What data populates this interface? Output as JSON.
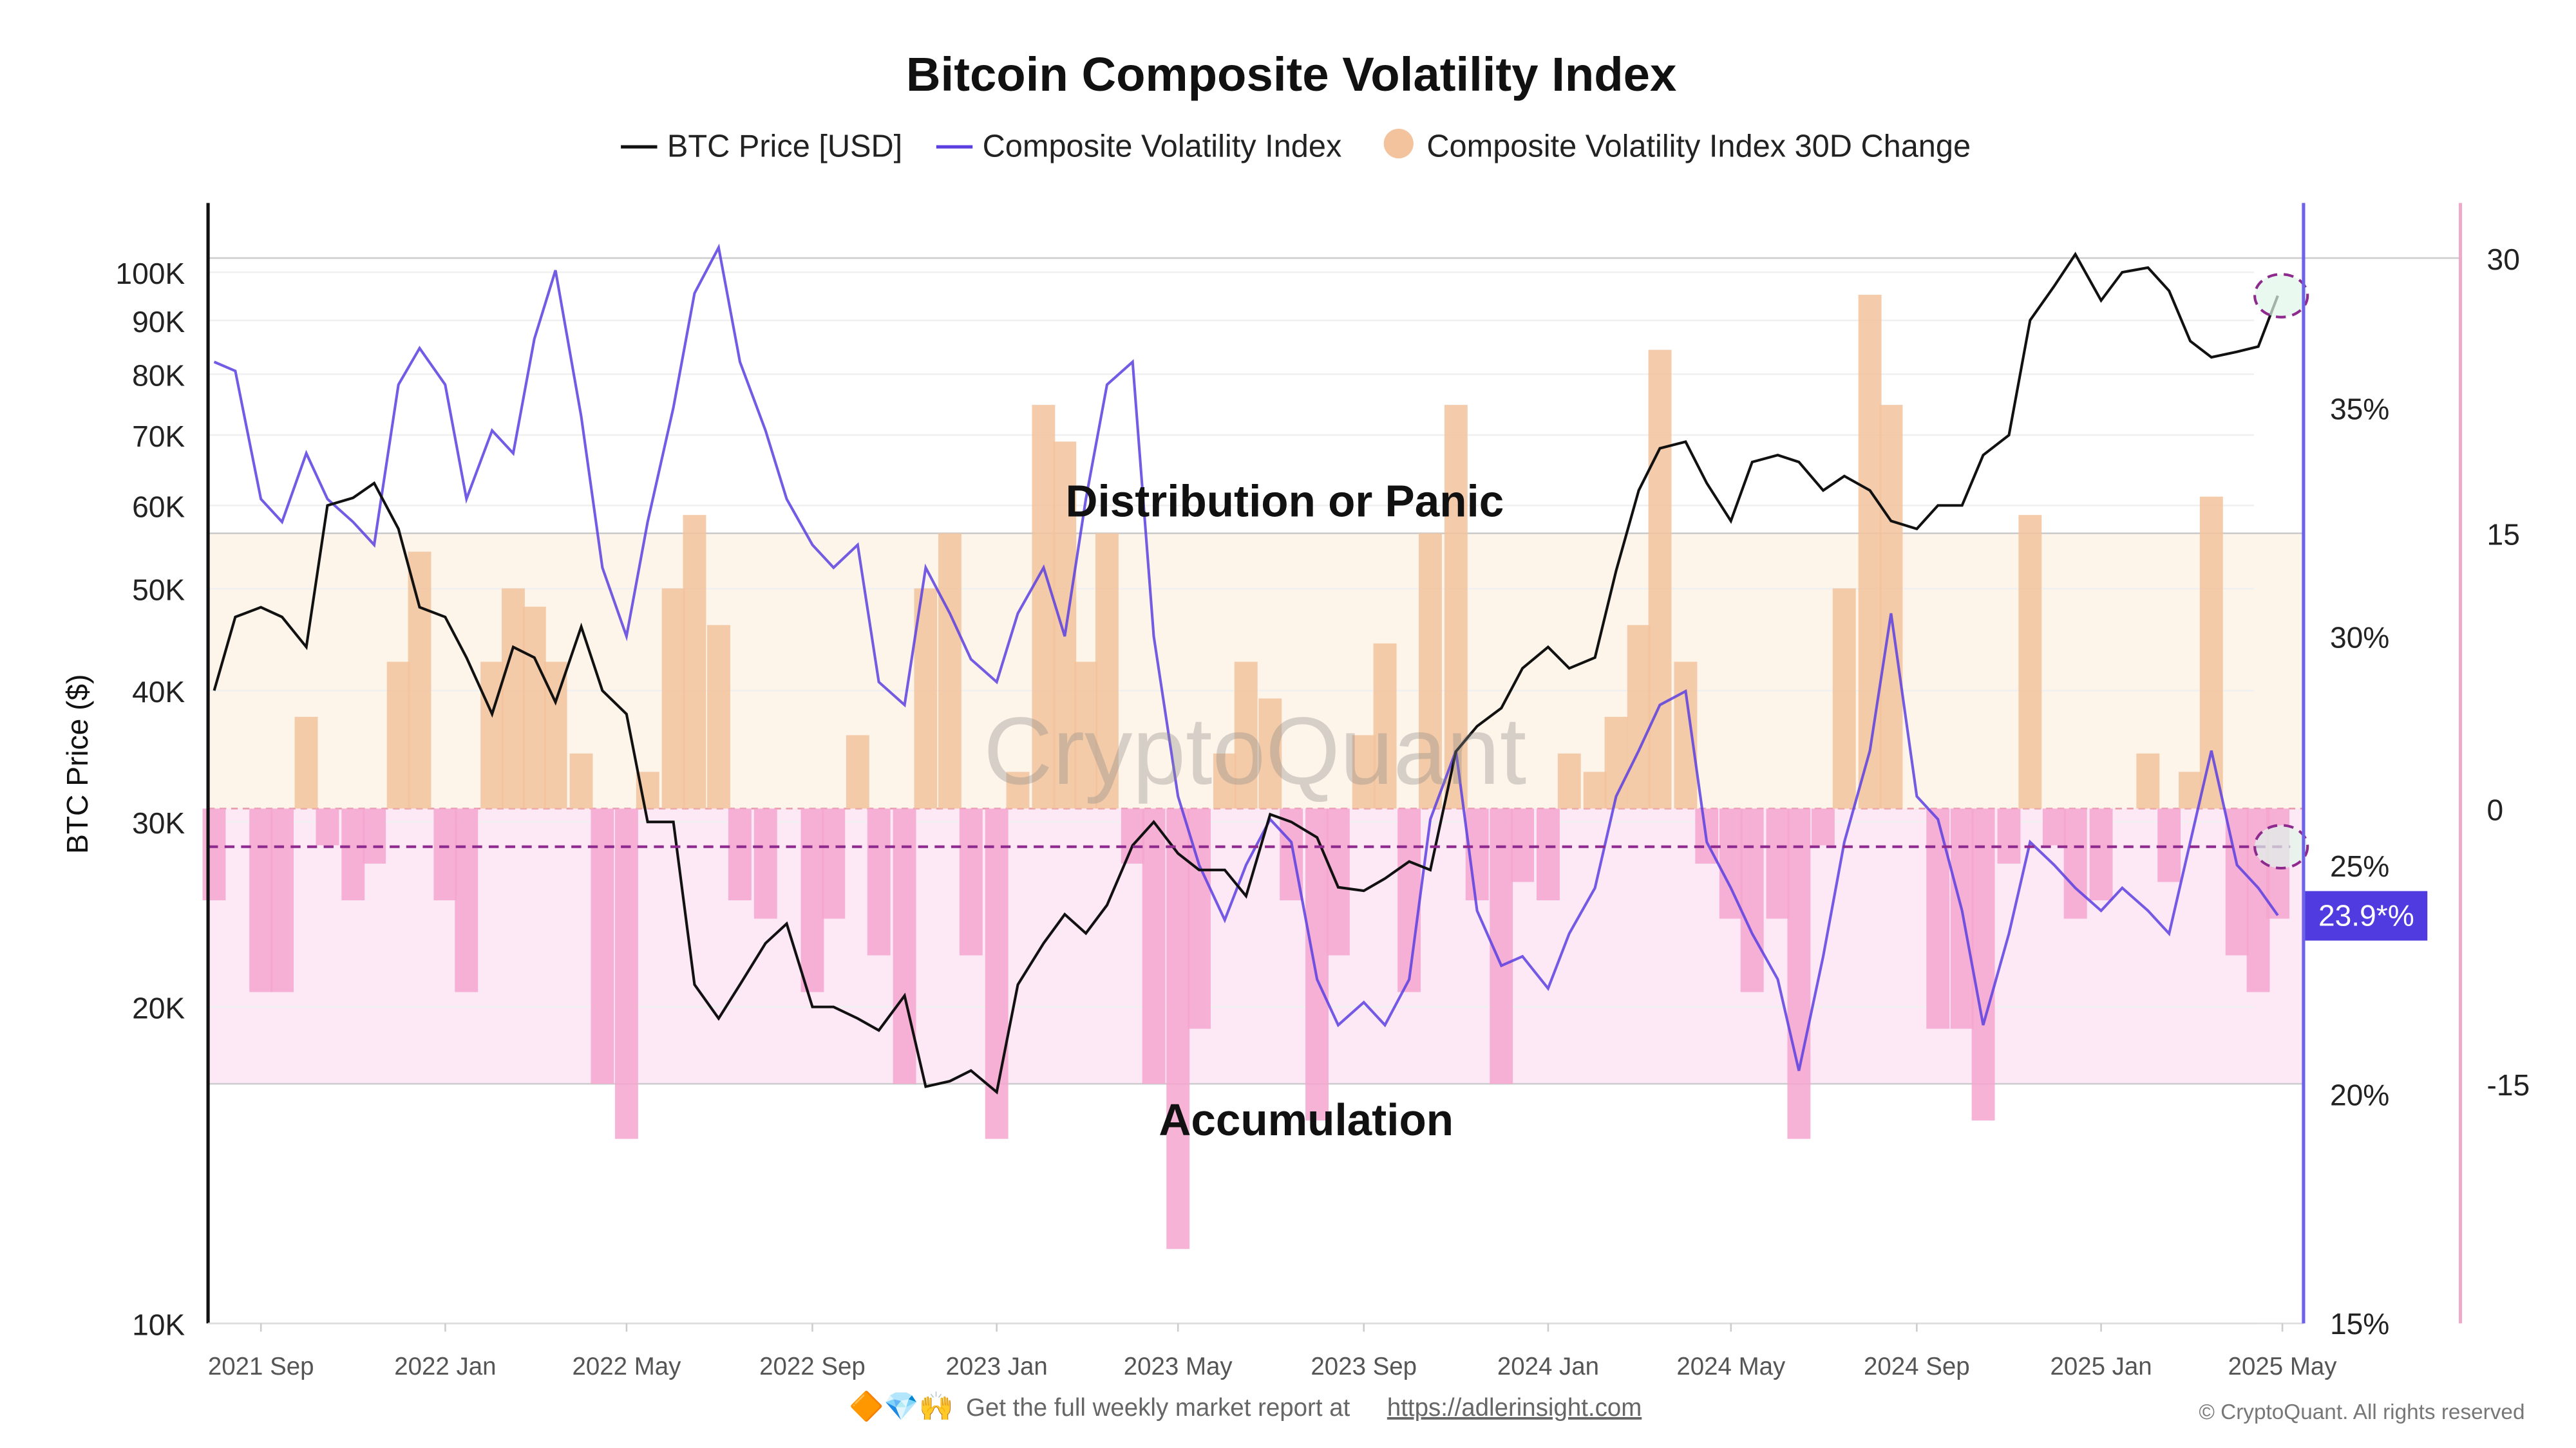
{
  "chart_data": {
    "type": "line",
    "title": "Bitcoin Composite Volatility Index",
    "legend": {
      "placement": "top-center",
      "items": [
        {
          "label": "BTC Price [USD]",
          "color": "#111111",
          "kind": "line"
        },
        {
          "label": "Composite Volatility Index",
          "color": "#5b3fe0",
          "kind": "line"
        },
        {
          "label": "Composite Volatility Index 30D Change",
          "color": "#f2c39c",
          "kind": "dot"
        }
      ]
    },
    "y_left": {
      "label": "BTC Price ($)",
      "scale": "log",
      "range": [
        10000,
        120000
      ],
      "ticks": [
        {
          "v": 10000,
          "t": "10K"
        },
        {
          "v": 20000,
          "t": "20K"
        },
        {
          "v": 30000,
          "t": "30K"
        },
        {
          "v": 40000,
          "t": "40K"
        },
        {
          "v": 50000,
          "t": "50K"
        },
        {
          "v": 60000,
          "t": "60K"
        },
        {
          "v": 70000,
          "t": "70K"
        },
        {
          "v": 80000,
          "t": "80K"
        },
        {
          "v": 90000,
          "t": "90K"
        },
        {
          "v": 100000,
          "t": "100K"
        }
      ]
    },
    "y_mid": {
      "label": "Composite Volatility Index",
      "range": [
        15,
        40
      ],
      "ticks": [
        {
          "v": 15,
          "t": "15%"
        },
        {
          "v": 20,
          "t": "20%"
        },
        {
          "v": 25,
          "t": "25%"
        },
        {
          "v": 30,
          "t": "30%"
        },
        {
          "v": 35,
          "t": "35%"
        }
      ]
    },
    "y_right": {
      "range": [
        -28,
        33
      ],
      "ticks": [
        {
          "v": -15,
          "t": "-15"
        },
        {
          "v": 0,
          "t": "0"
        },
        {
          "v": 15,
          "t": "15"
        },
        {
          "v": 30,
          "t": "30"
        }
      ]
    },
    "x_ticks": [
      {
        "d": "2021-09-01",
        "t": "2021 Sep"
      },
      {
        "d": "2022-01-01",
        "t": "2022 Jan"
      },
      {
        "d": "2022-05-01",
        "t": "2022 May"
      },
      {
        "d": "2022-09-01",
        "t": "2022 Sep"
      },
      {
        "d": "2023-01-01",
        "t": "2023 Jan"
      },
      {
        "d": "2023-05-01",
        "t": "2023 May"
      },
      {
        "d": "2023-09-01",
        "t": "2023 Sep"
      },
      {
        "d": "2024-01-01",
        "t": "2024 Jan"
      },
      {
        "d": "2024-05-01",
        "t": "2024 May"
      },
      {
        "d": "2024-09-01",
        "t": "2024 Sep"
      },
      {
        "d": "2025-01-01",
        "t": "2025 Jan"
      },
      {
        "d": "2025-05-01",
        "t": "2025 May"
      }
    ],
    "x_range": [
      "2021-07-28",
      "2025-05-15"
    ],
    "zones": [
      {
        "label": "Distribution or Panic",
        "from": 0,
        "to": 15,
        "color": "#fdf4ea"
      },
      {
        "label": "Accumulation",
        "from": -15,
        "to": 0,
        "color": "#fde8f6"
      }
    ],
    "reference_line_cvi": 25.4,
    "current_value_badge": "23.9*%",
    "watermark": "CryptoQuant",
    "grid": true,
    "x": [
      "2021-08-01",
      "2021-08-15",
      "2021-09-01",
      "2021-09-15",
      "2021-10-01",
      "2021-10-15",
      "2021-11-01",
      "2021-11-15",
      "2021-12-01",
      "2021-12-15",
      "2022-01-01",
      "2022-01-15",
      "2022-02-01",
      "2022-02-15",
      "2022-03-01",
      "2022-03-15",
      "2022-04-01",
      "2022-04-15",
      "2022-05-01",
      "2022-05-15",
      "2022-06-01",
      "2022-06-15",
      "2022-07-01",
      "2022-07-15",
      "2022-08-01",
      "2022-08-15",
      "2022-09-01",
      "2022-09-15",
      "2022-10-01",
      "2022-10-15",
      "2022-11-01",
      "2022-11-15",
      "2022-12-01",
      "2022-12-15",
      "2023-01-01",
      "2023-01-15",
      "2023-02-01",
      "2023-02-15",
      "2023-03-01",
      "2023-03-15",
      "2023-04-01",
      "2023-04-15",
      "2023-05-01",
      "2023-05-15",
      "2023-06-01",
      "2023-06-15",
      "2023-07-01",
      "2023-07-15",
      "2023-08-01",
      "2023-08-15",
      "2023-09-01",
      "2023-09-15",
      "2023-10-01",
      "2023-10-15",
      "2023-11-01",
      "2023-11-15",
      "2023-12-01",
      "2023-12-15",
      "2024-01-01",
      "2024-01-15",
      "2024-02-01",
      "2024-02-15",
      "2024-03-01",
      "2024-03-15",
      "2024-04-01",
      "2024-04-15",
      "2024-05-01",
      "2024-05-15",
      "2024-06-01",
      "2024-06-15",
      "2024-07-01",
      "2024-07-15",
      "2024-08-01",
      "2024-08-15",
      "2024-09-01",
      "2024-09-15",
      "2024-10-01",
      "2024-10-15",
      "2024-11-01",
      "2024-11-15",
      "2024-12-01",
      "2024-12-15",
      "2025-01-01",
      "2025-01-15",
      "2025-02-01",
      "2025-02-15",
      "2025-03-01",
      "2025-03-15",
      "2025-04-01",
      "2025-04-15",
      "2025-04-28"
    ],
    "series": [
      {
        "name": "BTC Price [USD]",
        "axis": "left",
        "color": "#111111",
        "values": [
          40000,
          47000,
          48000,
          47000,
          44000,
          60000,
          61000,
          63000,
          57000,
          48000,
          47000,
          43000,
          38000,
          44000,
          43000,
          39000,
          46000,
          40000,
          38000,
          30000,
          30000,
          21000,
          19500,
          21000,
          23000,
          24000,
          20000,
          20000,
          19500,
          19000,
          20500,
          16800,
          17000,
          17400,
          16600,
          21000,
          23000,
          24500,
          23500,
          25000,
          28500,
          30000,
          28000,
          27000,
          27000,
          25500,
          30500,
          30000,
          29000,
          26000,
          25800,
          26500,
          27500,
          27000,
          35000,
          37000,
          38500,
          42000,
          44000,
          42000,
          43000,
          52000,
          62000,
          68000,
          69000,
          63000,
          58000,
          66000,
          67000,
          66000,
          62000,
          64000,
          62000,
          58000,
          57000,
          60000,
          60000,
          67000,
          70000,
          90000,
          97000,
          104000,
          94000,
          100000,
          101000,
          96000,
          86000,
          83000,
          84000,
          85000,
          95000
        ]
      },
      {
        "name": "Composite Volatility Index",
        "axis": "mid",
        "color": "#5b3fe0",
        "values": [
          36,
          35.8,
          33,
          32.5,
          34,
          33,
          32.5,
          32,
          35.5,
          36.3,
          35.5,
          33,
          34.5,
          34,
          36.5,
          38,
          34.8,
          31.5,
          30,
          32.5,
          35,
          37.5,
          38.5,
          36,
          34.5,
          33,
          32,
          31.5,
          32,
          29,
          28.5,
          31.5,
          30.5,
          29.5,
          29,
          30.5,
          31.5,
          30,
          33,
          35.5,
          36,
          30,
          26.5,
          25,
          23.8,
          25,
          26,
          25.5,
          22.5,
          21.5,
          22,
          21.5,
          22.5,
          26,
          27.5,
          24,
          22.8,
          23,
          22.3,
          23.5,
          24.5,
          26.5,
          27.5,
          28.5,
          28.8,
          25.5,
          24.5,
          23.5,
          22.5,
          20.5,
          23,
          25.5,
          27.5,
          30.5,
          26.5,
          26,
          24,
          21.5,
          23.5,
          25.5,
          25,
          24.5,
          24,
          24.5,
          24,
          23.5,
          25.5,
          27.5,
          25,
          24.5,
          23.9
        ]
      },
      {
        "name": "Composite Volatility Index 30D Change",
        "axis": "right",
        "type": "bar",
        "color_pos": "#f2c39c",
        "color_neg": "#f4a6cf",
        "values": [
          -5,
          0,
          -10,
          -10,
          5,
          -2,
          -5,
          -3,
          8,
          14,
          -5,
          -10,
          8,
          12,
          11,
          8,
          3,
          -15,
          -18,
          2,
          12,
          16,
          10,
          -5,
          -6,
          0,
          -10,
          -6,
          4,
          -8,
          -15,
          12,
          15,
          -8,
          -18,
          2,
          22,
          20,
          8,
          15,
          -3,
          -15,
          -24,
          -12,
          3,
          8,
          6,
          -5,
          -17,
          -8,
          4,
          9,
          -10,
          15,
          22,
          -5,
          -15,
          -4,
          -5,
          3,
          2,
          5,
          10,
          25,
          8,
          -3,
          -6,
          -10,
          -6,
          -18,
          -2,
          12,
          28,
          22,
          0,
          -12,
          -12,
          -17,
          -3,
          16,
          -2,
          -6,
          -5,
          0,
          3,
          -4,
          2,
          17,
          -8,
          -10,
          -6
        ]
      }
    ]
  },
  "footer": {
    "emojis": "🔶💎🙌",
    "text": "Get the full weekly market report at",
    "link": "https://adlerinsight.com",
    "copyright": "© CryptoQuant. All rights reserved"
  }
}
